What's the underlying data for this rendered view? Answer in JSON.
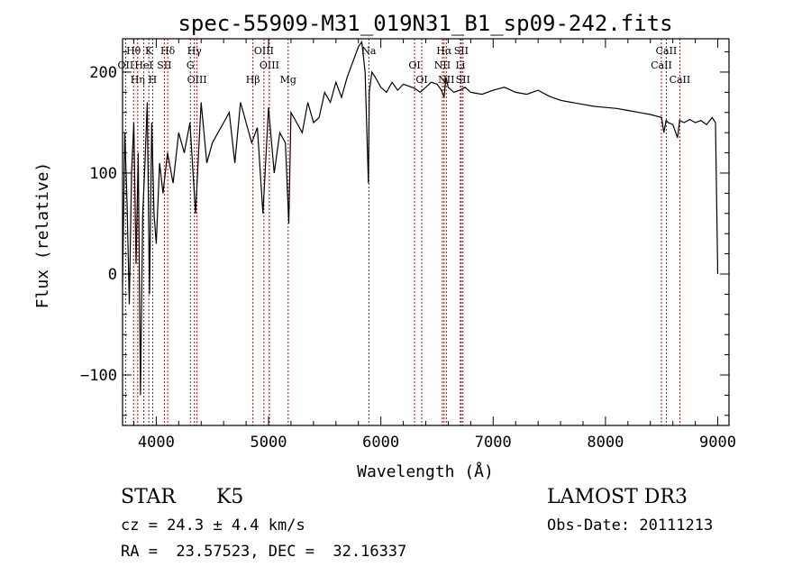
{
  "chart_data": {
    "type": "line",
    "title": "spec-55909-M31_019N31_B1_sp09-242.fits",
    "xlabel": "Wavelength (Å)",
    "ylabel": "Flux (relative)",
    "xlim": [
      3700,
      9100
    ],
    "ylim": [
      -150,
      233
    ],
    "x_ticks": [
      4000,
      5000,
      6000,
      7000,
      8000,
      9000
    ],
    "y_ticks": [
      -100,
      0,
      100,
      200
    ],
    "series": [
      {
        "name": "flux",
        "x": [
          3700,
          3720,
          3740,
          3760,
          3780,
          3800,
          3820,
          3840,
          3860,
          3880,
          3900,
          3920,
          3940,
          3960,
          3980,
          4000,
          4030,
          4060,
          4100,
          4150,
          4200,
          4250,
          4300,
          4350,
          4400,
          4450,
          4500,
          4550,
          4600,
          4650,
          4700,
          4750,
          4800,
          4850,
          4900,
          4950,
          5000,
          5050,
          5100,
          5150,
          5180,
          5200,
          5250,
          5300,
          5350,
          5400,
          5450,
          5500,
          5550,
          5600,
          5650,
          5700,
          5750,
          5800,
          5830,
          5860,
          5889,
          5893,
          5897,
          5920,
          5950,
          6000,
          6050,
          6100,
          6150,
          6200,
          6250,
          6300,
          6350,
          6400,
          6450,
          6500,
          6540,
          6563,
          6580,
          6600,
          6650,
          6700,
          6750,
          6800,
          6900,
          7000,
          7100,
          7200,
          7300,
          7400,
          7500,
          7600,
          7700,
          7800,
          7900,
          8000,
          8100,
          8200,
          8300,
          8400,
          8500,
          8520,
          8540,
          8560,
          8600,
          8642,
          8660,
          8700,
          8750,
          8800,
          8850,
          8900,
          8950,
          8980,
          9000
        ],
        "values": [
          -10,
          140,
          70,
          -30,
          100,
          150,
          10,
          120,
          -120,
          60,
          110,
          170,
          -20,
          150,
          60,
          30,
          110,
          80,
          120,
          90,
          140,
          120,
          150,
          60,
          170,
          110,
          130,
          140,
          150,
          160,
          110,
          170,
          150,
          130,
          145,
          60,
          165,
          100,
          140,
          130,
          50,
          160,
          150,
          140,
          170,
          150,
          155,
          180,
          170,
          190,
          175,
          195,
          210,
          225,
          230,
          200,
          90,
          130,
          180,
          200,
          195,
          185,
          180,
          190,
          182,
          188,
          186,
          184,
          180,
          185,
          190,
          188,
          182,
          175,
          195,
          185,
          180,
          182,
          185,
          180,
          178,
          182,
          185,
          180,
          178,
          182,
          176,
          172,
          170,
          168,
          166,
          165,
          164,
          162,
          160,
          158,
          155,
          140,
          152,
          150,
          148,
          135,
          152,
          150,
          153,
          150,
          152,
          148,
          155,
          150,
          0
        ]
      }
    ],
    "lines": [
      {
        "label": "Hθ",
        "wavelength": 3798
      },
      {
        "label": "OII",
        "wavelength": 3727
      },
      {
        "label": "Hη",
        "wavelength": 3835
      },
      {
        "label": "K",
        "wavelength": 3934
      },
      {
        "label": "HeI",
        "wavelength": 3889
      },
      {
        "label": "H",
        "wavelength": 3968
      },
      {
        "label": "Hδ",
        "wavelength": 4102
      },
      {
        "label": "SII",
        "wavelength": 4072
      },
      {
        "label": "OIII",
        "wavelength": 4363
      },
      {
        "label": "Hγ",
        "wavelength": 4340
      },
      {
        "label": "G",
        "wavelength": 4304
      },
      {
        "label": "Hβ",
        "wavelength": 4861
      },
      {
        "label": "OIII",
        "wavelength": 4959
      },
      {
        "label": "OIII",
        "wavelength": 5007
      },
      {
        "label": "Mg",
        "wavelength": 5175
      },
      {
        "label": "Na",
        "wavelength": 5893
      },
      {
        "label": "OI",
        "wavelength": 6300
      },
      {
        "label": "OI",
        "wavelength": 6364
      },
      {
        "label": "Hα",
        "wavelength": 6563
      },
      {
        "label": "NII",
        "wavelength": 6548
      },
      {
        "label": "NII",
        "wavelength": 6583
      },
      {
        "label": "SII",
        "wavelength": 6716
      },
      {
        "label": "Li",
        "wavelength": 6708
      },
      {
        "label": "SII",
        "wavelength": 6731
      },
      {
        "label": "CaII",
        "wavelength": 8542
      },
      {
        "label": "CaII",
        "wavelength": 8498
      },
      {
        "label": "CaII",
        "wavelength": 8662
      }
    ]
  },
  "info": {
    "class_label": "STAR",
    "subclass": "K5",
    "cz": "cz = 24.3 ± 4.4 km/s",
    "coords": "RA =  23.57523, DEC =  32.16337",
    "survey": "LAMOST DR3",
    "obs_date": "Obs-Date: 20111213"
  }
}
